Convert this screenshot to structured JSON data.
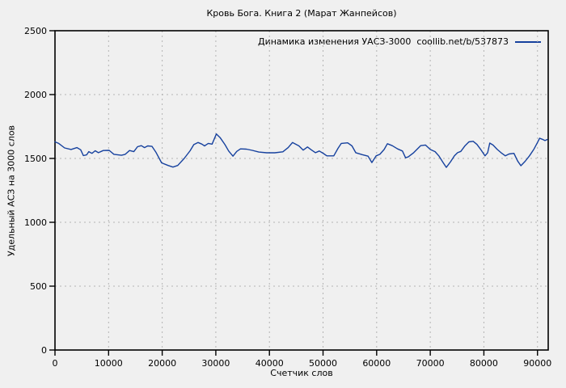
{
  "chart_data": {
    "type": "line",
    "title": "Кровь Бога. Книга 2 (Марат Жанпейсов)",
    "legend": "Динамика изменения УАСЗ-3000  coollib.net/b/537873",
    "xlabel": "Счетчик слов",
    "ylabel": "Удельный АСЗ на 3000 слов",
    "xlim": [
      0,
      92000
    ],
    "ylim": [
      0,
      2500
    ],
    "xticks": [
      0,
      10000,
      20000,
      30000,
      40000,
      50000,
      60000,
      70000,
      80000,
      90000
    ],
    "yticks": [
      0,
      500,
      1000,
      1500,
      2000,
      2500
    ],
    "grid": true,
    "legend_position": "top-right",
    "line_color": "#16419e",
    "grid_color": "#b3b3b3",
    "border_color": "#000000",
    "background_color": "#f0f0f0",
    "series": [
      {
        "name": "Динамика изменения УАСЗ-3000",
        "points": [
          [
            0,
            1630
          ],
          [
            700,
            1618
          ],
          [
            1800,
            1582
          ],
          [
            3000,
            1570
          ],
          [
            4100,
            1585
          ],
          [
            4800,
            1568
          ],
          [
            5300,
            1522
          ],
          [
            5900,
            1528
          ],
          [
            6300,
            1553
          ],
          [
            6900,
            1540
          ],
          [
            7500,
            1560
          ],
          [
            8100,
            1545
          ],
          [
            9000,
            1562
          ],
          [
            10100,
            1563
          ],
          [
            11000,
            1532
          ],
          [
            12400,
            1525
          ],
          [
            13100,
            1532
          ],
          [
            13900,
            1562
          ],
          [
            14700,
            1553
          ],
          [
            15400,
            1592
          ],
          [
            16100,
            1600
          ],
          [
            16700,
            1585
          ],
          [
            17300,
            1598
          ],
          [
            18100,
            1594
          ],
          [
            18800,
            1550
          ],
          [
            19900,
            1465
          ],
          [
            21100,
            1445
          ],
          [
            22000,
            1432
          ],
          [
            22900,
            1445
          ],
          [
            24100,
            1500
          ],
          [
            25200,
            1560
          ],
          [
            25900,
            1608
          ],
          [
            26700,
            1625
          ],
          [
            27400,
            1612
          ],
          [
            27900,
            1598
          ],
          [
            28600,
            1618
          ],
          [
            29300,
            1612
          ],
          [
            30100,
            1692
          ],
          [
            30800,
            1663
          ],
          [
            31700,
            1608
          ],
          [
            32400,
            1558
          ],
          [
            33200,
            1518
          ],
          [
            33900,
            1555
          ],
          [
            34600,
            1575
          ],
          [
            35700,
            1573
          ],
          [
            36800,
            1563
          ],
          [
            38000,
            1550
          ],
          [
            39500,
            1544
          ],
          [
            41000,
            1544
          ],
          [
            42500,
            1552
          ],
          [
            43500,
            1585
          ],
          [
            44300,
            1625
          ],
          [
            45500,
            1598
          ],
          [
            46300,
            1565
          ],
          [
            47100,
            1590
          ],
          [
            47800,
            1568
          ],
          [
            48600,
            1545
          ],
          [
            49300,
            1558
          ],
          [
            50100,
            1538
          ],
          [
            50700,
            1520
          ],
          [
            52000,
            1520
          ],
          [
            52800,
            1580
          ],
          [
            53400,
            1618
          ],
          [
            54600,
            1622
          ],
          [
            55400,
            1598
          ],
          [
            56100,
            1545
          ],
          [
            57300,
            1530
          ],
          [
            58400,
            1518
          ],
          [
            59100,
            1468
          ],
          [
            59900,
            1520
          ],
          [
            60600,
            1532
          ],
          [
            61400,
            1570
          ],
          [
            62000,
            1615
          ],
          [
            62900,
            1600
          ],
          [
            63900,
            1575
          ],
          [
            64800,
            1558
          ],
          [
            65400,
            1505
          ],
          [
            65900,
            1512
          ],
          [
            66900,
            1545
          ],
          [
            68200,
            1600
          ],
          [
            69100,
            1605
          ],
          [
            70000,
            1570
          ],
          [
            70900,
            1553
          ],
          [
            71600,
            1520
          ],
          [
            72400,
            1468
          ],
          [
            73000,
            1430
          ],
          [
            73800,
            1475
          ],
          [
            74500,
            1520
          ],
          [
            75100,
            1545
          ],
          [
            75700,
            1555
          ],
          [
            76500,
            1600
          ],
          [
            77200,
            1630
          ],
          [
            78000,
            1634
          ],
          [
            78700,
            1610
          ],
          [
            79500,
            1565
          ],
          [
            80200,
            1520
          ],
          [
            80700,
            1545
          ],
          [
            81100,
            1620
          ],
          [
            81700,
            1605
          ],
          [
            82500,
            1570
          ],
          [
            83200,
            1545
          ],
          [
            84000,
            1520
          ],
          [
            84700,
            1535
          ],
          [
            85600,
            1540
          ],
          [
            86300,
            1480
          ],
          [
            86900,
            1443
          ],
          [
            87700,
            1478
          ],
          [
            88500,
            1520
          ],
          [
            89300,
            1570
          ],
          [
            90000,
            1625
          ],
          [
            90400,
            1658
          ],
          [
            90900,
            1650
          ],
          [
            91400,
            1640
          ],
          [
            91800,
            1648
          ]
        ]
      }
    ]
  }
}
